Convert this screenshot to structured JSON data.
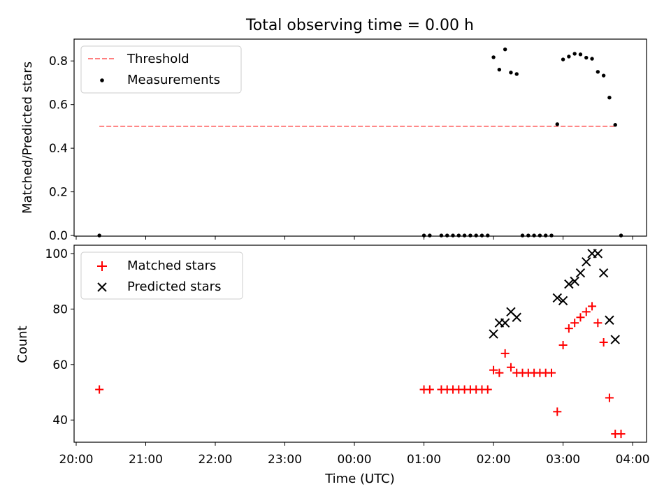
{
  "title": "Total observing time = 0.00 h",
  "chart_data": [
    {
      "type": "scatter",
      "title": "Total observing time = 0.00 h",
      "xlabel": "",
      "ylabel": "Matched/Predicted stars",
      "xlim": [
        "20:00",
        "04:00"
      ],
      "ylim": [
        0,
        0.9
      ],
      "yticks": [
        0.0,
        0.2,
        0.4,
        0.6,
        0.8
      ],
      "ytick_labels": [
        "0.0",
        "0.2",
        "0.4",
        "0.6",
        "0.8"
      ],
      "legend_position": "top-left",
      "threshold": {
        "name": "Threshold",
        "color": "#ff7f7f",
        "y": 0.5,
        "x_start": "20:20",
        "x_end": "03:45"
      },
      "measurements": {
        "name": "Measurements",
        "color": "#000000",
        "x": [
          "20:20",
          "01:00",
          "01:05",
          "01:15",
          "01:20",
          "01:25",
          "01:30",
          "01:35",
          "01:40",
          "01:45",
          "01:50",
          "01:55",
          "02:00",
          "02:05",
          "02:10",
          "02:15",
          "02:20",
          "02:25",
          "02:30",
          "02:35",
          "02:40",
          "02:45",
          "02:50",
          "02:55",
          "03:00",
          "03:05",
          "03:10",
          "03:15",
          "03:20",
          "03:25",
          "03:30",
          "03:35",
          "03:40",
          "03:45",
          "03:50"
        ],
        "y": [
          0.0,
          0.0,
          0.0,
          0.0,
          0.0,
          0.0,
          0.0,
          0.0,
          0.0,
          0.0,
          0.0,
          0.0,
          0.817,
          0.76,
          0.853,
          0.747,
          0.74,
          0.0,
          0.0,
          0.0,
          0.0,
          0.0,
          0.0,
          0.51,
          0.807,
          0.82,
          0.833,
          0.83,
          0.815,
          0.81,
          0.75,
          0.733,
          0.632,
          0.507,
          0.0
        ]
      }
    },
    {
      "type": "scatter",
      "xlabel": "Time (UTC)",
      "ylabel": "Count",
      "xlim": [
        "20:00",
        "04:00"
      ],
      "ylim": [
        32,
        103
      ],
      "yticks": [
        40,
        60,
        80,
        100
      ],
      "ytick_labels": [
        "40",
        "60",
        "80",
        "100"
      ],
      "xticks": [
        "20:00",
        "21:00",
        "22:00",
        "23:00",
        "00:00",
        "01:00",
        "02:00",
        "03:00",
        "04:00"
      ],
      "legend_position": "top-left",
      "series": [
        {
          "name": "Matched stars",
          "marker": "plus",
          "color": "#ff0000",
          "x": [
            "20:20",
            "01:00",
            "01:05",
            "01:15",
            "01:20",
            "01:25",
            "01:30",
            "01:35",
            "01:40",
            "01:45",
            "01:50",
            "01:55",
            "02:00",
            "02:05",
            "02:10",
            "02:15",
            "02:20",
            "02:25",
            "02:30",
            "02:35",
            "02:40",
            "02:45",
            "02:50",
            "02:55",
            "03:00",
            "03:05",
            "03:10",
            "03:15",
            "03:20",
            "03:25",
            "03:30",
            "03:35",
            "03:40",
            "03:45",
            "03:50"
          ],
          "y": [
            51,
            51,
            51,
            51,
            51,
            51,
            51,
            51,
            51,
            51,
            51,
            51,
            58,
            57,
            64,
            59,
            57,
            57,
            57,
            57,
            57,
            57,
            57,
            43,
            67,
            73,
            75,
            77,
            79,
            81,
            75,
            68,
            48,
            35,
            35
          ]
        },
        {
          "name": "Predicted stars",
          "marker": "x",
          "color": "#000000",
          "x": [
            "02:00",
            "02:05",
            "02:10",
            "02:15",
            "02:20",
            "02:55",
            "03:00",
            "03:05",
            "03:10",
            "03:15",
            "03:20",
            "03:25",
            "03:30",
            "03:35",
            "03:40",
            "03:45"
          ],
          "y": [
            71,
            75,
            75,
            79,
            77,
            84,
            83,
            89,
            90,
            93,
            97,
            100,
            100,
            93,
            76,
            69
          ]
        }
      ]
    }
  ]
}
